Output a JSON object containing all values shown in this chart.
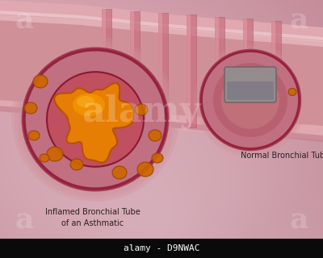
{
  "bg_gradient": [
    "#a06070",
    "#b87080",
    "#c89098",
    "#ddb0b8",
    "#e8c8cc",
    "#f0dce0",
    "#eedde2"
  ],
  "footer_bg": "#0a0a0a",
  "footer_text": "alamy - D9NWAC",
  "label_inflamed": "Inflamed Bronchial Tube\nof an Asthmatic",
  "label_normal": "Normal Bronchial Tube",
  "label_color": "#2a2020",
  "label_fontsize": 7.0,
  "watermark_color": "#ffffff",
  "watermark_alpha": 0.22,
  "tube_fill": "#e0a8b0",
  "tube_edge": "#c07880",
  "ring_fill": "#c87080",
  "ring_edge": "#b06070",
  "cross_outer_fill": "#d08090",
  "cross_outer_edge": "#a04050",
  "inflamed_inner_fill": "#c06070",
  "inflamed_inner_edge": "#8a2030",
  "mucus_fill": "#e88000",
  "mucus_edge": "#b05000",
  "mucus_highlight": "#ffaa00",
  "particle_fill": "#cc6600",
  "particle_edge": "#994400",
  "normal_outer_fill": "#d07888",
  "normal_outer_edge": "#a04050",
  "normal_inner_fill": "#c05868",
  "normal_inner_edge": "#802040",
  "normal_airway_fill": "#a06070",
  "normal_lumen_fill": "#c07880",
  "cartilage_fill": "#9090a0",
  "cartilage_edge": "#606070"
}
